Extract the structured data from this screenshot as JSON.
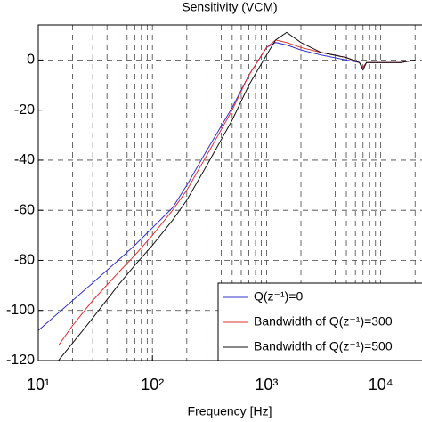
{
  "chart_data": {
    "type": "line",
    "title": "Sensitivity (VCM)",
    "x_label": "Frequency [Hz]",
    "x": [
      10,
      15,
      20,
      30,
      50,
      70,
      100,
      150,
      200,
      300,
      500,
      700,
      1000,
      1200,
      1500,
      2000,
      3000,
      5000,
      6500,
      7000,
      7500,
      10000,
      15000,
      20000
    ],
    "series": [
      {
        "name": "Q(z⁻¹)=0",
        "color": "#3333cc",
        "values": [
          -108,
          -101,
          -96,
          -89,
          -80,
          -74,
          -67,
          -59,
          -50,
          -36,
          -19,
          -6,
          5,
          7,
          6,
          4,
          2,
          0,
          -1,
          -3,
          -1,
          -1,
          -1,
          0
        ]
      },
      {
        "name": "Bandwidth of Q(z⁻¹)=300",
        "color": "#e03030",
        "values": [
          null,
          -114,
          -106,
          -96,
          -85,
          -78,
          -70,
          -60,
          -52,
          -38,
          -20,
          -6,
          5,
          8,
          7,
          5,
          3,
          1,
          -1,
          -3,
          -1,
          -1,
          -1,
          0
        ]
      },
      {
        "name": "Bandwidth of Q(z⁻¹)=500",
        "color": "#111111",
        "values": [
          null,
          -120,
          -113,
          -103,
          -90,
          -82,
          -74,
          -64,
          -56,
          -42,
          -24,
          -10,
          2,
          8,
          11,
          7,
          3,
          1,
          -1,
          -4,
          -1,
          -1,
          -1,
          0
        ]
      }
    ],
    "xscale": "log",
    "xlim": [
      10,
      23000
    ],
    "xticks": [
      {
        "value": 10,
        "label": "10¹"
      },
      {
        "value": 100,
        "label": "10²"
      },
      {
        "value": 1000,
        "label": "10³"
      },
      {
        "value": 10000,
        "label": "10⁴"
      }
    ],
    "xminorticks": [
      20,
      30,
      40,
      50,
      60,
      70,
      80,
      90,
      200,
      300,
      400,
      500,
      600,
      700,
      800,
      900,
      2000,
      3000,
      4000,
      5000,
      6000,
      7000,
      8000,
      9000,
      20000
    ],
    "ylim": [
      -120,
      14
    ],
    "yticks": [
      -120,
      -100,
      -80,
      -60,
      -40,
      -20,
      0
    ],
    "grid": true,
    "legend": "lower right"
  }
}
